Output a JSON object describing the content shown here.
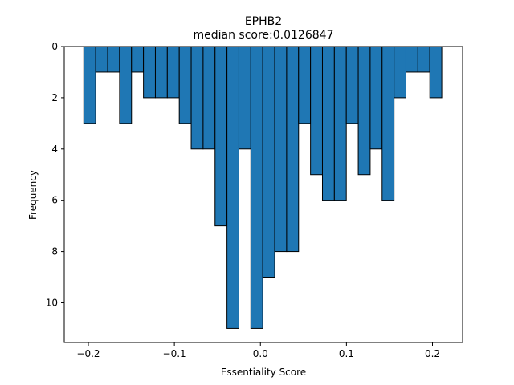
{
  "chart_data": {
    "type": "bar",
    "title": "EPHB2",
    "subtitle": "median score:0.0126847",
    "xlabel": "Essentiality Score",
    "ylabel": "Frequency",
    "xlim": [
      -0.228,
      0.235
    ],
    "ylim": [
      0,
      11.55
    ],
    "y_inverted": true,
    "x_ticks": [
      {
        "value": -0.2,
        "label": "−0.2"
      },
      {
        "value": -0.1,
        "label": "−0.1"
      },
      {
        "value": 0.0,
        "label": "0.0"
      },
      {
        "value": 0.1,
        "label": "0.1"
      },
      {
        "value": 0.2,
        "label": "0.2"
      }
    ],
    "y_ticks": [
      {
        "value": 0,
        "label": "0"
      },
      {
        "value": 2,
        "label": "2"
      },
      {
        "value": 4,
        "label": "4"
      },
      {
        "value": 6,
        "label": "6"
      },
      {
        "value": 8,
        "label": "8"
      },
      {
        "value": 10,
        "label": "10"
      }
    ],
    "bin_start": -0.2053,
    "bin_width": 0.01387,
    "values": [
      3,
      1,
      1,
      3,
      1,
      2,
      2,
      2,
      3,
      4,
      4,
      7,
      11,
      4,
      11,
      9,
      8,
      8,
      3,
      5,
      6,
      6,
      3,
      5,
      4,
      6,
      2,
      1,
      1,
      2
    ],
    "bar_color": "#1f77b4",
    "edge_color": "#000000",
    "grid": false
  }
}
